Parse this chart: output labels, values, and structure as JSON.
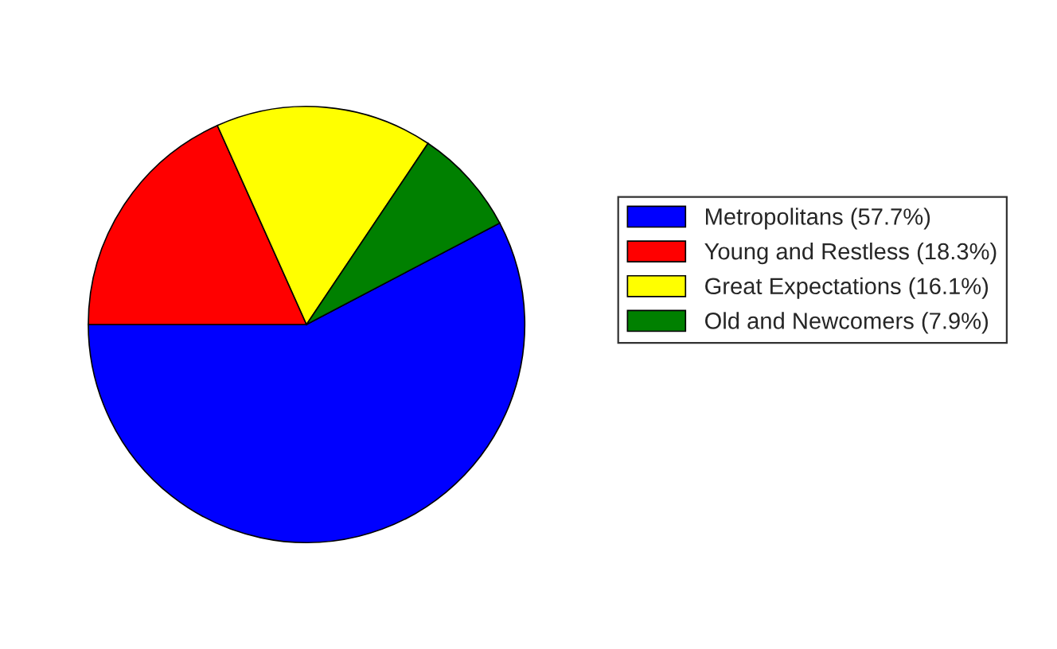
{
  "chart_data": {
    "type": "pie",
    "categories": [
      "Metropolitans (57.7%)",
      "Young and Restless (18.3%)",
      "Great Expectations (16.1%)",
      "Old and Newcomers (7.9%)"
    ],
    "values": [
      57.7,
      18.3,
      16.1,
      7.9
    ],
    "colors": [
      "#0000ff",
      "#ff0000",
      "#ffff00",
      "#008000"
    ],
    "legend": "right"
  }
}
